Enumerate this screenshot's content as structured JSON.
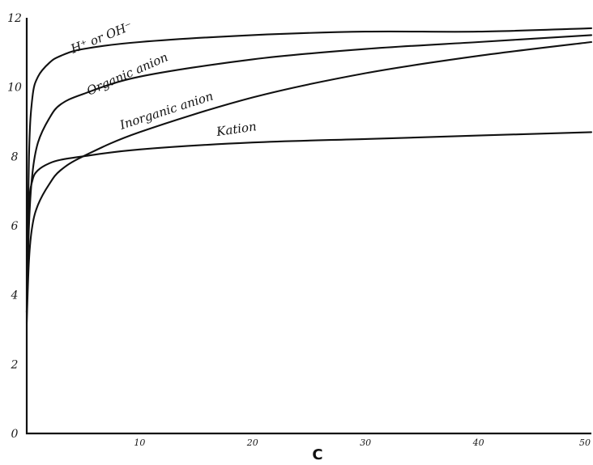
{
  "chart_data": {
    "type": "line",
    "title": "",
    "xlabel": "C",
    "ylabel": "",
    "xlim": [
      0,
      50
    ],
    "ylim": [
      0,
      12
    ],
    "x_ticks": [
      {
        "value": 10,
        "label": "10"
      },
      {
        "value": 20,
        "label": "20"
      },
      {
        "value": 30,
        "label": "30"
      },
      {
        "value": 40,
        "label": "40"
      },
      {
        "value": 50,
        "label": "50"
      }
    ],
    "y_ticks": [
      {
        "value": 0,
        "label": "0"
      },
      {
        "value": 2,
        "label": "2"
      },
      {
        "value": 4,
        "label": "4"
      },
      {
        "value": 6,
        "label": "6"
      },
      {
        "value": 8,
        "label": "8"
      },
      {
        "value": 10,
        "label": "10"
      },
      {
        "value": 12,
        "label": "12"
      }
    ],
    "grid": false,
    "series": [
      {
        "name": "H⁺ or OH⁻",
        "x": [
          0,
          0.2,
          0.5,
          1,
          2,
          3,
          5,
          10,
          20,
          30,
          40,
          50
        ],
        "y": [
          3.5,
          8.0,
          9.7,
          10.3,
          10.7,
          10.9,
          11.1,
          11.3,
          11.5,
          11.6,
          11.6,
          11.7
        ]
      },
      {
        "name": "Organic anion",
        "x": [
          0,
          0.2,
          0.5,
          1,
          2,
          3,
          5,
          10,
          20,
          30,
          40,
          50
        ],
        "y": [
          3.5,
          6.0,
          7.5,
          8.4,
          9.1,
          9.5,
          9.8,
          10.3,
          10.8,
          11.1,
          11.3,
          11.5
        ]
      },
      {
        "name": "Inorganic anion",
        "x": [
          0,
          0.2,
          0.5,
          1,
          2,
          3,
          5,
          10,
          20,
          30,
          40,
          50
        ],
        "y": [
          3.2,
          5.0,
          6.0,
          6.6,
          7.2,
          7.6,
          8.0,
          8.7,
          9.7,
          10.4,
          10.9,
          11.3
        ]
      },
      {
        "name": "Kation",
        "x": [
          0,
          0.2,
          0.5,
          1,
          2,
          3,
          5,
          10,
          20,
          30,
          40,
          50
        ],
        "y": [
          3.5,
          6.5,
          7.3,
          7.6,
          7.8,
          7.9,
          8.0,
          8.2,
          8.4,
          8.5,
          8.6,
          8.7
        ]
      }
    ]
  }
}
